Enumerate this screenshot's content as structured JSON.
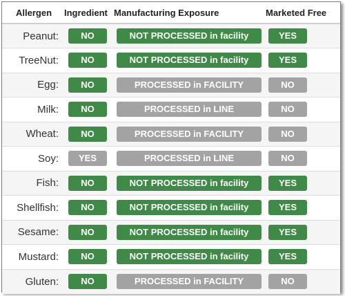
{
  "headers": {
    "allergen": "Allergen",
    "ingredient": "Ingredient",
    "exposure": "Manufacturing Exposure",
    "marketed_free": "Marketed Free"
  },
  "colors": {
    "green": "#3f8a46",
    "gray": "#a3a3a3"
  },
  "rows": [
    {
      "allergen": "Peanut:",
      "ingredient": "NO",
      "exposure": "NOT PROCESSED in facility",
      "marketed_free": "YES"
    },
    {
      "allergen": "TreeNut:",
      "ingredient": "NO",
      "exposure": "NOT PROCESSED in facility",
      "marketed_free": "YES"
    },
    {
      "allergen": "Egg:",
      "ingredient": "NO",
      "exposure": "PROCESSED in FACILITY",
      "marketed_free": "NO"
    },
    {
      "allergen": "Milk:",
      "ingredient": "NO",
      "exposure": "PROCESSED in LINE",
      "marketed_free": "NO"
    },
    {
      "allergen": "Wheat:",
      "ingredient": "NO",
      "exposure": "PROCESSED in FACILITY",
      "marketed_free": "NO"
    },
    {
      "allergen": "Soy:",
      "ingredient": "YES",
      "exposure": "PROCESSED in LINE",
      "marketed_free": "NO"
    },
    {
      "allergen": "Fish:",
      "ingredient": "NO",
      "exposure": "NOT PROCESSED in facility",
      "marketed_free": "YES"
    },
    {
      "allergen": "Shellfish:",
      "ingredient": "NO",
      "exposure": "NOT PROCESSED in facility",
      "marketed_free": "YES"
    },
    {
      "allergen": "Sesame:",
      "ingredient": "NO",
      "exposure": "NOT PROCESSED in facility",
      "marketed_free": "YES"
    },
    {
      "allergen": "Mustard:",
      "ingredient": "NO",
      "exposure": "NOT PROCESSED in facility",
      "marketed_free": "YES"
    },
    {
      "allergen": "Gluten:",
      "ingredient": "NO",
      "exposure": "PROCESSED in FACILITY",
      "marketed_free": "NO"
    }
  ]
}
